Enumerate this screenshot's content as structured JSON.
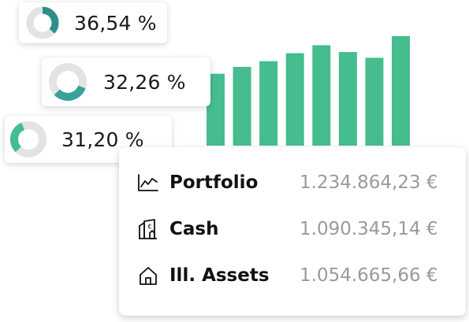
{
  "colors": {
    "bar": "#45bd8f",
    "donut_track": "#e3e3e3",
    "donut_teal": "#2c8f8a",
    "donut_teal_light": "#3aa09a",
    "donut_green": "#45bd8f",
    "value_text": "#9a9a9a"
  },
  "donuts": [
    {
      "value": "36,54 %",
      "fraction": 0.3654,
      "color": "#2c8f8a",
      "start_deg": 0
    },
    {
      "value": "32,26 %",
      "fraction": 0.3226,
      "color": "#3aa09a",
      "start_deg": 110
    },
    {
      "value": "31,20 %",
      "fraction": 0.312,
      "color": "#45bd8f",
      "start_deg": 225
    }
  ],
  "chart_data": {
    "type": "bar",
    "categories": [
      "",
      "",
      "",
      "",
      "",
      "",
      "",
      ""
    ],
    "values": [
      63,
      69,
      74,
      81,
      88,
      82,
      77,
      96
    ],
    "ylim": [
      0,
      100
    ],
    "grid": false,
    "title": "",
    "xlabel": "",
    "ylabel": ""
  },
  "summary": {
    "rows": [
      {
        "icon": "line-chart-icon",
        "label": "Portfolio",
        "value": "1.234.864,23 €"
      },
      {
        "icon": "building-euro-icon",
        "label": "Cash",
        "value": "1.090.345,14 €"
      },
      {
        "icon": "house-icon",
        "label": "Ill. Assets",
        "value": "1.054.665,66 €"
      }
    ]
  }
}
